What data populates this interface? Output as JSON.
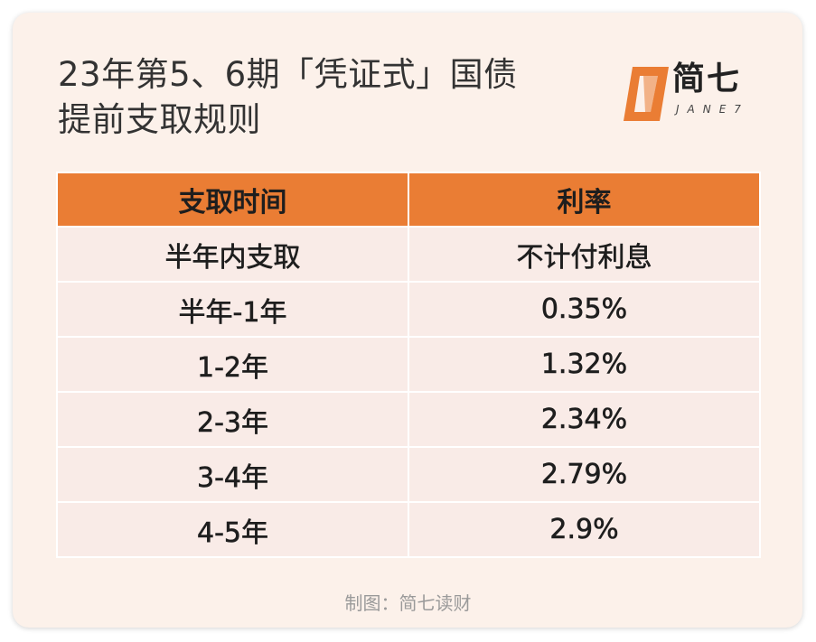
{
  "title": {
    "line1": "23年第5、6期「凭证式」国债",
    "line2": "提前支取规则"
  },
  "logo": {
    "name_cn": "简七",
    "name_en": "JANE7",
    "icon": "jane7-logo-icon",
    "brand_color": "#ea7d34"
  },
  "table": {
    "headers": [
      "支取时间",
      "利率"
    ],
    "header_color": "#ea7d34",
    "rows": [
      [
        "半年内支取",
        "不计付利息"
      ],
      [
        "半年-1年",
        "0.35%"
      ],
      [
        "1-2年",
        "1.32%"
      ],
      [
        "2-3年",
        "2.34%"
      ],
      [
        "3-4年",
        "2.79%"
      ],
      [
        "4-5年",
        "2.9%"
      ]
    ]
  },
  "footer": "制图：简七读财"
}
